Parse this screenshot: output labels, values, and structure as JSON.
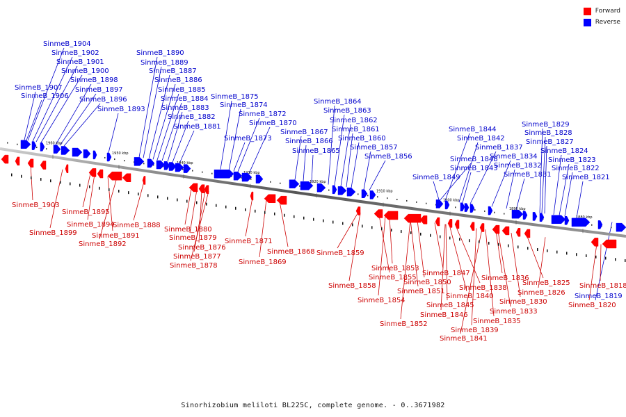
{
  "legend": {
    "forward_label": "Forward",
    "reverse_label": "Reverse",
    "forward_color": "#ff0000",
    "reverse_color": "#0000ff"
  },
  "footer": "Sinorhizobium meliloti BL225C, complete genome. - 0..3671982",
  "ticks": [
    "1960 kbp",
    "1950 kbp",
    "1940 kbp",
    "1930 kbp",
    "1920 kbp",
    "1910 kbp",
    "1900 kbp",
    "1890 kbp",
    "1880 kbp"
  ],
  "reverse_genes": [
    "SinmeB_1904",
    "SinmeB_1902",
    "SinmeB_1901",
    "SinmeB_1900",
    "SinmeB_1898",
    "SinmeB_1897",
    "SinmeB_1896",
    "SinmeB_1907",
    "SinmeB_1906",
    "SinmeB_1893",
    "SinmeB_1890",
    "SinmeB_1889",
    "SinmeB_1887",
    "SinmeB_1886",
    "SinmeB_1885",
    "SinmeB_1884",
    "SinmeB_1883",
    "SinmeB_1882",
    "SinmeB_1881",
    "SinmeB_1875",
    "SinmeB_1874",
    "SinmeB_1872",
    "SinmeB_1870",
    "SinmeB_1873",
    "SinmeB_1867",
    "SinmeB_1866",
    "SinmeB_1865",
    "SinmeB_1864",
    "SinmeB_1863",
    "SinmeB_1862",
    "SinmeB_1861",
    "SinmeB_1860",
    "SinmeB_1857",
    "SinmeB_1856",
    "SinmeB_1844",
    "SinmeB_1842",
    "SinmeB_1837",
    "SinmeB_1848",
    "SinmeB_1843",
    "SinmeB_1834",
    "SinmeB_1832",
    "SinmeB_1831",
    "SinmeB_1849",
    "SinmeB_1829",
    "SinmeB_1828",
    "SinmeB_1827",
    "SinmeB_1824",
    "SinmeB_1823",
    "SinmeB_1822",
    "SinmeB_1821",
    "SinmeB_1819"
  ],
  "forward_genes": [
    "SinmeB_1903",
    "SinmeB_1899",
    "SinmeB_1895",
    "SinmeB_1894",
    "SinmeB_1891",
    "SinmeB_1892",
    "SinmeB_1888",
    "SinmeB_1880",
    "SinmeB_1879",
    "SinmeB_1876",
    "SinmeB_1877",
    "SinmeB_1878",
    "SinmeB_1871",
    "SinmeB_1869",
    "SinmeB_1868",
    "SinmeB_1859",
    "SinmeB_1858",
    "SinmeB_1855",
    "SinmeB_1853",
    "SinmeB_1854",
    "SinmeB_1852",
    "SinmeB_1850",
    "SinmeB_1851",
    "SinmeB_1847",
    "SinmeB_1840",
    "SinmeB_1838",
    "SinmeB_1845",
    "SinmeB_1846",
    "SinmeB_1839",
    "SinmeB_1841",
    "SinmeB_1836",
    "SinmeB_1833",
    "SinmeB_1835",
    "SinmeB_1830",
    "SinmeB_1825",
    "SinmeB_1826",
    "SinmeB_1818",
    "SinmeB_1820"
  ]
}
